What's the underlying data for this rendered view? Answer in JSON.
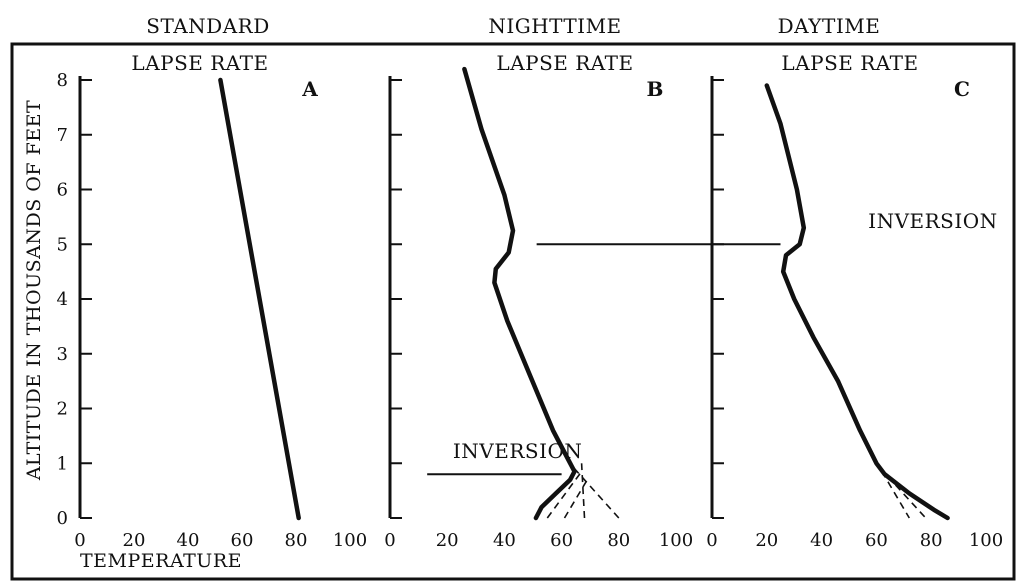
{
  "figure": {
    "ylabel": "ALTITUDE IN THOUSANDS OF FEET",
    "xlabel": "TEMPERATURE",
    "ink_color": "#111111",
    "background_color": "#ffffff"
  },
  "chart_data": [
    {
      "type": "line",
      "title_line1": "STANDARD",
      "title_line2": "LAPSE RATE",
      "panel_letter": "A",
      "xlim": [
        0,
        100
      ],
      "ylim": [
        0,
        8
      ],
      "x_ticks": [
        "0",
        "20",
        "40",
        "60",
        "80",
        "100"
      ],
      "y_ticks": [
        "0",
        "1",
        "2",
        "3",
        "4",
        "5",
        "6",
        "7",
        "8"
      ],
      "series": [
        {
          "points": [
            [
              81,
              0
            ],
            [
              52,
              8
            ]
          ]
        }
      ],
      "annotations": []
    },
    {
      "type": "line",
      "title_line1": "NIGHTTIME",
      "title_line2": "LAPSE RATE",
      "panel_letter": "B",
      "xlim": [
        0,
        100
      ],
      "ylim": [
        0,
        8
      ],
      "x_ticks": [
        "0",
        "20",
        "40",
        "60",
        "80",
        "100"
      ],
      "series": [
        {
          "points": [
            [
              51,
              0
            ],
            [
              53,
              0.2
            ],
            [
              58,
              0.45
            ],
            [
              63,
              0.7
            ],
            [
              64.5,
              0.85
            ],
            [
              62,
              1.1
            ],
            [
              57,
              1.6
            ],
            [
              49,
              2.6
            ],
            [
              41,
              3.6
            ],
            [
              36.5,
              4.3
            ],
            [
              37,
              4.55
            ],
            [
              41.5,
              4.85
            ],
            [
              43,
              5.25
            ],
            [
              40,
              5.9
            ],
            [
              32,
              7.1
            ],
            [
              26,
              8.2
            ]
          ]
        }
      ],
      "dashed_series": [
        {
          "points": [
            [
              55,
              0
            ],
            [
              67,
              0.85
            ]
          ]
        },
        {
          "points": [
            [
              61,
              0
            ],
            [
              69,
              0.7
            ]
          ]
        },
        {
          "points": [
            [
              68,
              0
            ],
            [
              67,
              1
            ]
          ]
        },
        {
          "points": [
            [
              80,
              0
            ],
            [
              64.5,
              0.9
            ]
          ]
        }
      ],
      "annotations": [
        {
          "text": "INVERSION",
          "x": 22,
          "y": 1.1,
          "line_from_x": 13,
          "line_to_x": 60,
          "line_y": 0.8
        }
      ]
    },
    {
      "type": "line",
      "title_line1": "DAYTIME",
      "title_line2": "LAPSE RATE",
      "panel_letter": "C",
      "xlim": [
        0,
        100
      ],
      "ylim": [
        0,
        8
      ],
      "x_ticks": [
        "0",
        "20",
        "40",
        "60",
        "80",
        "100"
      ],
      "series": [
        {
          "points": [
            [
              86,
              0
            ],
            [
              81,
              0.15
            ],
            [
              72,
              0.45
            ],
            [
              63,
              0.8
            ],
            [
              60,
              1.0
            ],
            [
              54,
              1.6
            ],
            [
              46,
              2.5
            ],
            [
              37,
              3.3
            ],
            [
              30,
              4.0
            ],
            [
              26,
              4.5
            ],
            [
              27,
              4.8
            ],
            [
              32,
              5.0
            ],
            [
              33.5,
              5.3
            ],
            [
              31,
              6.0
            ],
            [
              25,
              7.2
            ],
            [
              20,
              7.9
            ]
          ]
        }
      ],
      "dashed_series": [
        {
          "points": [
            [
              62,
              0.85
            ],
            [
              72,
              0
            ]
          ]
        },
        {
          "points": [
            [
              67,
              0.6
            ],
            [
              78,
              0
            ]
          ]
        }
      ],
      "annotations": [
        {
          "text": "INVERSION",
          "x": 57,
          "y": 5.3,
          "line_from_x": -64,
          "line_to_x": 25,
          "line_y": 5.0
        }
      ]
    }
  ]
}
